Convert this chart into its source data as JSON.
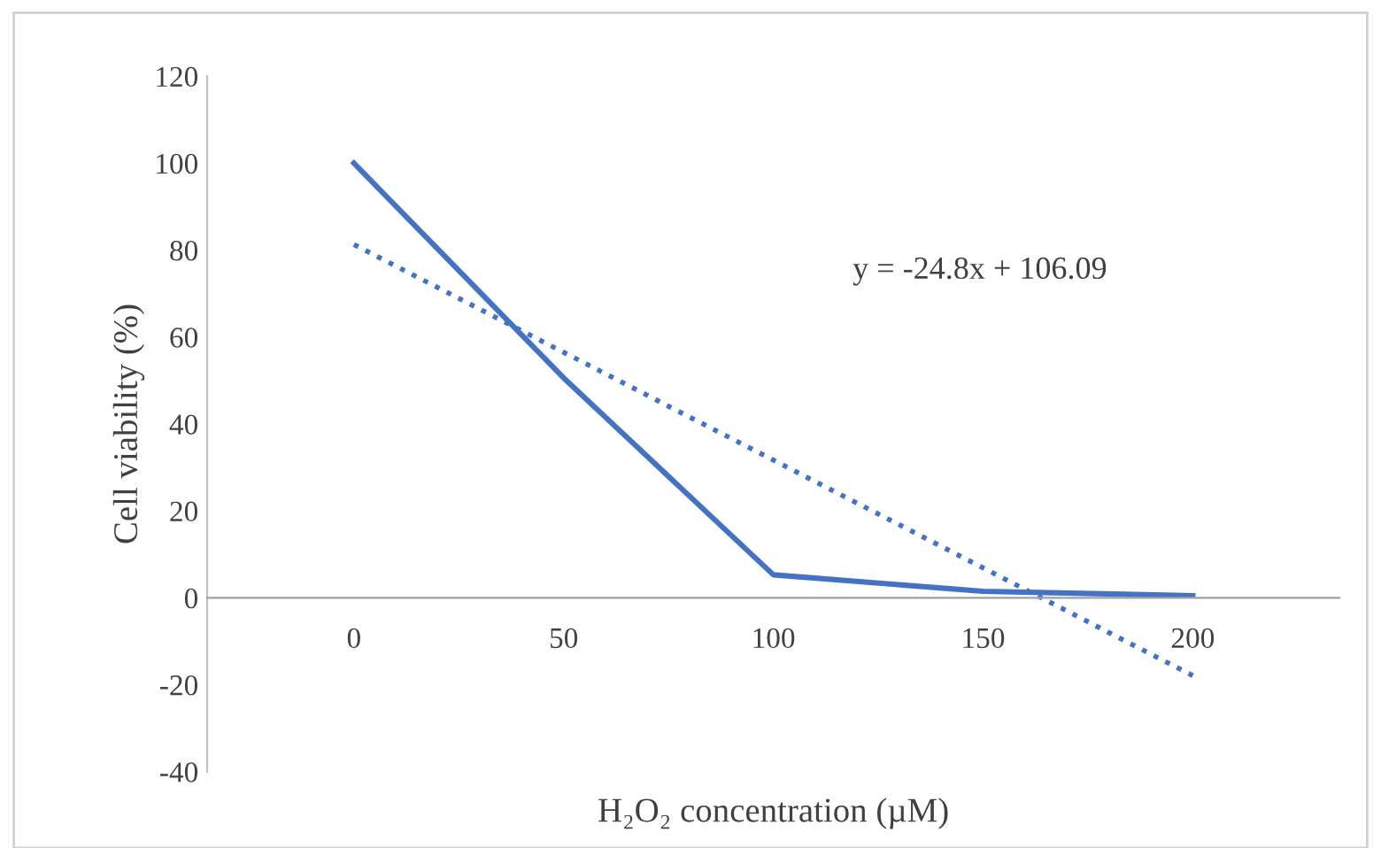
{
  "chart_data": {
    "type": "line",
    "xlabel": "H₂O₂ concentration (µM)",
    "ylabel": "Cell viability (%)",
    "categories": [
      "0",
      "50",
      "100",
      "150",
      "200"
    ],
    "series": [
      {
        "color": "#4472c4",
        "values": [
          100,
          50.6,
          5.3,
          1.5,
          0.5
        ],
        "line_style": "solid"
      },
      {
        "color": "#4472c4",
        "values": [
          81.3,
          56.5,
          31.7,
          6.9,
          -17.9
        ],
        "line_style": "dotted"
      }
    ],
    "ylim": [
      -40,
      120
    ],
    "yticks": [
      -40,
      -20,
      0,
      20,
      40,
      60,
      80,
      100,
      120
    ],
    "grid": false,
    "legend": false,
    "annotations": [
      "y = -24.8x + 106.09"
    ]
  }
}
